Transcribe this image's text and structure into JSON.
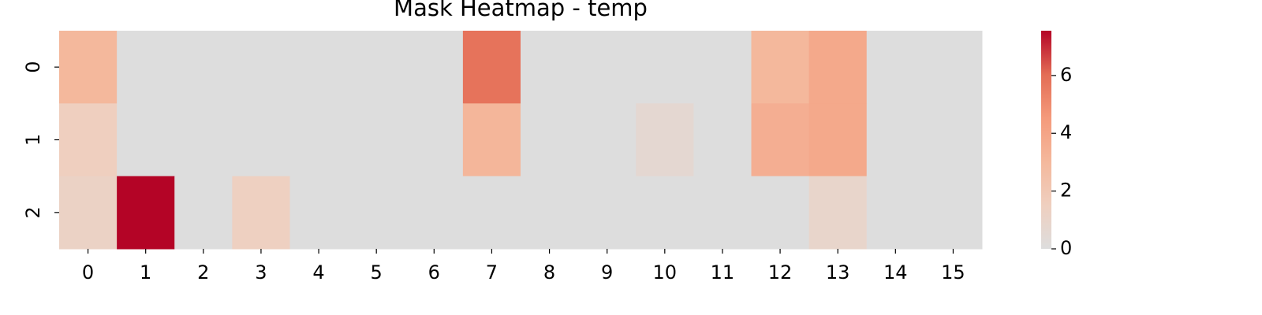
{
  "chart_data": {
    "type": "heatmap",
    "title": "Mask Heatmap - temp",
    "x_categories": [
      "0",
      "1",
      "2",
      "3",
      "4",
      "5",
      "6",
      "7",
      "8",
      "9",
      "10",
      "11",
      "12",
      "13",
      "14",
      "15"
    ],
    "y_categories": [
      "0",
      "1",
      "2"
    ],
    "values": [
      [
        3.0,
        0,
        0,
        0,
        0,
        0,
        0,
        5.8,
        0,
        0,
        0,
        0,
        3.0,
        3.8,
        0,
        0
      ],
      [
        1.5,
        0,
        0,
        0,
        0,
        0,
        0,
        3.1,
        0,
        0,
        0.6,
        0,
        3.5,
        3.8,
        0,
        0
      ],
      [
        1.2,
        7.55,
        0,
        1.4,
        0,
        0,
        0,
        0,
        0,
        0,
        0,
        0,
        0,
        0.9,
        0,
        0
      ]
    ],
    "zlim": [
      0,
      7.55
    ],
    "cticks": [
      0,
      2,
      4,
      6
    ],
    "colors": [
      "#dddddd",
      "#efcfbf",
      "#f4b89c",
      "#f49a7b",
      "#e36c55",
      "#b40426"
    ]
  }
}
